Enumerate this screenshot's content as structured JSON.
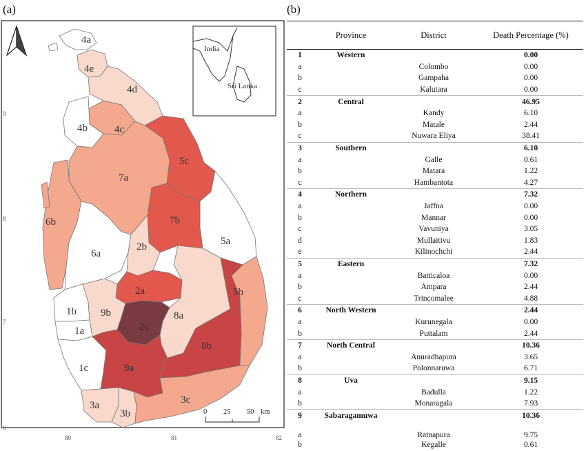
{
  "panels": {
    "a": "(a)",
    "b": "(b)"
  },
  "map": {
    "inset_labels": {
      "india": "India",
      "srilanka": "Sri Lanka"
    },
    "scale": {
      "ticks": [
        "0",
        "25",
        "50"
      ],
      "unit": "km"
    },
    "lon_ticks": [
      "80",
      "81",
      "82"
    ],
    "lat_ticks": [
      "9",
      "8",
      "7",
      "6"
    ],
    "district_labels": [
      "4a",
      "4e",
      "4d",
      "4c",
      "4b",
      "5c",
      "7a",
      "7b",
      "6b",
      "6a",
      "2b",
      "5a",
      "2a",
      "5b",
      "9b",
      "1b",
      "8a",
      "2c",
      "1a",
      "8b",
      "9a",
      "1c",
      "3a",
      "3b",
      "3c"
    ],
    "colors": {
      "zero": "#ffffff",
      "light": "#f9d9cc",
      "mid": "#f4a88e",
      "strong": "#ee7a66",
      "red": "#e2584d",
      "deep": "#c94444",
      "darkest": "#7a3a42"
    }
  },
  "table": {
    "headers": {
      "province": "Province",
      "district": "District",
      "pct": "Death Percentage (%)"
    },
    "rows": [
      {
        "num": "1",
        "province": "Western",
        "district": "",
        "pct": "0.00",
        "type": "prov"
      },
      {
        "num": "a",
        "province": "",
        "district": "Colombo",
        "pct": "0.00",
        "type": "dist"
      },
      {
        "num": "b",
        "province": "",
        "district": "Gampaha",
        "pct": "0.00",
        "type": "dist"
      },
      {
        "num": "c",
        "province": "",
        "district": "Kalutara",
        "pct": "0.00",
        "type": "dist"
      },
      {
        "num": "2",
        "province": "Central",
        "district": "",
        "pct": "46.95",
        "type": "prov"
      },
      {
        "num": "a",
        "province": "",
        "district": "Kandy",
        "pct": "6.10",
        "type": "dist"
      },
      {
        "num": "b",
        "province": "",
        "district": "Matale",
        "pct": "2.44",
        "type": "dist"
      },
      {
        "num": "c",
        "province": "",
        "district": "Nuwara Eliya",
        "pct": "38.41",
        "type": "dist"
      },
      {
        "num": "3",
        "province": "Southern",
        "district": "",
        "pct": "6.10",
        "type": "prov"
      },
      {
        "num": "a",
        "province": "",
        "district": "Galle",
        "pct": "0.61",
        "type": "dist"
      },
      {
        "num": "b",
        "province": "",
        "district": "Matara",
        "pct": "1.22",
        "type": "dist"
      },
      {
        "num": "c",
        "province": "",
        "district": "Hambantota",
        "pct": "4.27",
        "type": "dist"
      },
      {
        "num": "4",
        "province": "Northern",
        "district": "",
        "pct": "7.32",
        "type": "prov"
      },
      {
        "num": "a",
        "province": "",
        "district": "Jaffna",
        "pct": "0.00",
        "type": "dist"
      },
      {
        "num": "b",
        "province": "",
        "district": "Mannar",
        "pct": "0.00",
        "type": "dist"
      },
      {
        "num": "c",
        "province": "",
        "district": "Vavuniya",
        "pct": "3.05",
        "type": "dist"
      },
      {
        "num": "d",
        "province": "",
        "district": "Mullaitivu",
        "pct": "1.83",
        "type": "dist"
      },
      {
        "num": "e",
        "province": "",
        "district": "Kilinochchi",
        "pct": "2.44",
        "type": "dist"
      },
      {
        "num": "5",
        "province": "Eastern",
        "district": "",
        "pct": "7.32",
        "type": "prov"
      },
      {
        "num": "a",
        "province": "",
        "district": "Batticaloa",
        "pct": "0.00",
        "type": "dist"
      },
      {
        "num": "b",
        "province": "",
        "district": "Ampara",
        "pct": "2.44",
        "type": "dist"
      },
      {
        "num": "c",
        "province": "",
        "district": "Trincomalee",
        "pct": "4.88",
        "type": "dist"
      },
      {
        "num": "6",
        "province": "North Western",
        "district": "",
        "pct": "2.44",
        "type": "prov"
      },
      {
        "num": "a",
        "province": "",
        "district": "Kurunegala",
        "pct": "0.00",
        "type": "dist"
      },
      {
        "num": "b",
        "province": "",
        "district": "Puttalam",
        "pct": "2.44",
        "type": "dist"
      },
      {
        "num": "7",
        "province": "North Central",
        "district": "",
        "pct": "10.36",
        "type": "prov"
      },
      {
        "num": "a",
        "province": "",
        "district": "Anuradhapura",
        "pct": "3.65",
        "type": "dist"
      },
      {
        "num": "b",
        "province": "",
        "district": "Polonnaruwa",
        "pct": "6.71",
        "type": "dist"
      },
      {
        "num": "8",
        "province": "Uva",
        "district": "",
        "pct": "9.15",
        "type": "prov"
      },
      {
        "num": "a",
        "province": "",
        "district": "Badulla",
        "pct": "1.22",
        "type": "dist"
      },
      {
        "num": "b",
        "province": "",
        "district": "Monaragala",
        "pct": "7.93",
        "type": "dist"
      },
      {
        "num": "9",
        "province": "Sabaragamuwa",
        "district": "",
        "pct": "10.36",
        "type": "prov"
      },
      {
        "num": "a",
        "province": "",
        "district": "Ratnapura",
        "pct": "9.75",
        "type": "dist"
      },
      {
        "num": "b",
        "province": "",
        "district": "Kegalle",
        "pct": "0.61",
        "type": "dist"
      }
    ]
  }
}
